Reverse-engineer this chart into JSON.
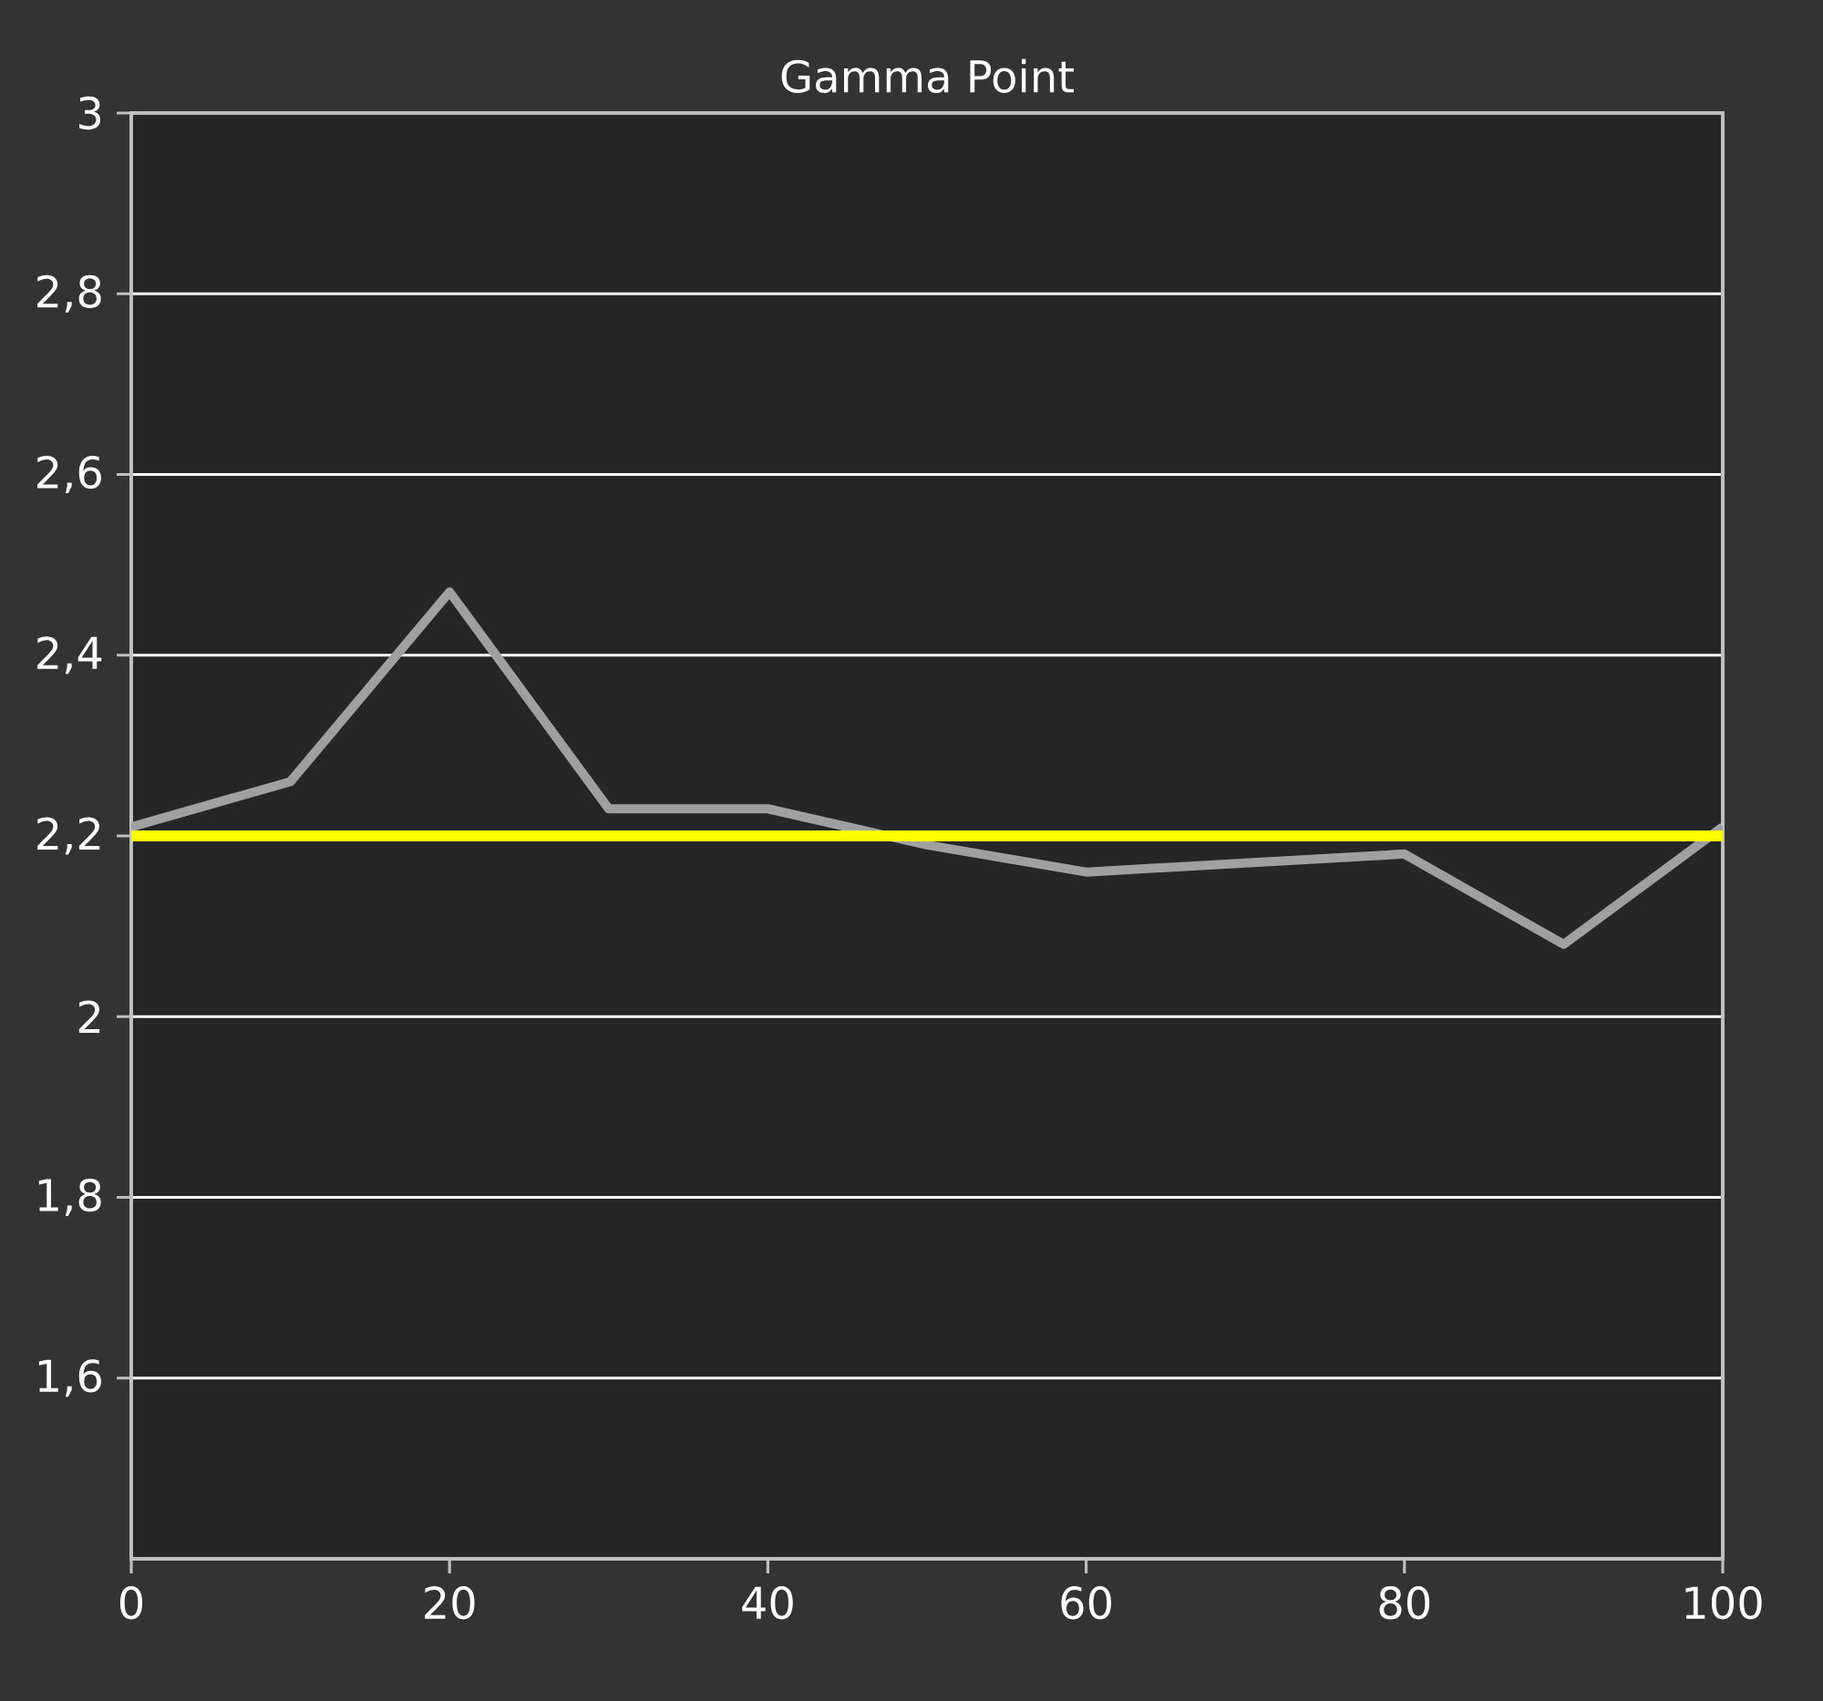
{
  "chart_data": {
    "type": "line",
    "title": "Gamma Point",
    "x": [
      0,
      10,
      20,
      30,
      40,
      50,
      60,
      70,
      80,
      90,
      100
    ],
    "series": [
      {
        "color": "#a0a0a0",
        "values": [
          2.21,
          2.26,
          2.47,
          2.23,
          2.23,
          2.19,
          2.16,
          2.17,
          2.18,
          2.08,
          2.21
        ]
      }
    ],
    "xlim": [
      0,
      100
    ],
    "ylim": [
      1.4,
      3
    ],
    "xticks": [
      0,
      20,
      40,
      60,
      80,
      100
    ],
    "yticks": [
      {
        "value": 1.6,
        "label": "1,6"
      },
      {
        "value": 1.8,
        "label": "1,8"
      },
      2,
      {
        "value": 2.2,
        "label": "2,2"
      },
      {
        "value": 2.4,
        "label": "2,4"
      },
      {
        "value": 2.6,
        "label": "2,6"
      },
      {
        "value": 2.8,
        "label": "2,8"
      },
      3
    ],
    "ref_lines": [
      {
        "axis": "y",
        "value": 2.2,
        "color": "#ffff00"
      }
    ],
    "grid": "y",
    "marker": "none",
    "line_style": "solid"
  }
}
